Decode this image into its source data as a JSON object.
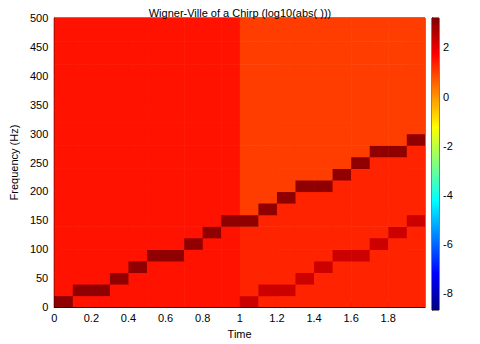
{
  "chart_data": {
    "type": "heatmap",
    "title": "Wigner-Ville of a Chirp (log10(abs( )))",
    "x_label": "Time",
    "y_label": "Frequency (Hz)",
    "xlim": [
      0,
      1.998
    ],
    "xticks": [
      0,
      0.2,
      0.4,
      0.6,
      0.8,
      1,
      1.2,
      1.4,
      1.6,
      1.8
    ],
    "ylim": [
      0,
      500
    ],
    "yticks": [
      0,
      50,
      100,
      150,
      200,
      250,
      300,
      350,
      400,
      450,
      500
    ],
    "grid": false,
    "x_bins": [
      0,
      0.1,
      0.2,
      0.3,
      0.4,
      0.5,
      0.6,
      0.7,
      0.8,
      0.9,
      1,
      1.1,
      1.2,
      1.3,
      1.4,
      1.5,
      1.6,
      1.7,
      1.8,
      1.9,
      2
    ],
    "y_bins": [
      0,
      20,
      40,
      60,
      80,
      100,
      120,
      140,
      160,
      180,
      200,
      220,
      240,
      260,
      280,
      300,
      320,
      340,
      360,
      380,
      400,
      420,
      440,
      460,
      480,
      500
    ],
    "cells": [
      [
        3.0,
        1.5,
        1.5,
        1.5,
        1.5,
        1.5,
        1.5,
        1.5,
        1.5,
        1.5,
        2.3,
        1.3,
        1.3,
        1.3,
        1.3,
        1.3,
        1.3,
        1.3,
        1.3,
        1.3
      ],
      [
        1.5,
        3.0,
        3.0,
        1.5,
        1.5,
        1.5,
        1.5,
        1.5,
        1.5,
        1.5,
        1.3,
        2.3,
        2.3,
        1.3,
        1.3,
        1.3,
        1.3,
        1.3,
        1.3,
        1.3
      ],
      [
        1.5,
        1.5,
        1.5,
        3.0,
        1.5,
        1.5,
        1.5,
        1.5,
        1.5,
        1.5,
        1.3,
        1.3,
        1.3,
        2.3,
        1.3,
        1.3,
        1.3,
        1.3,
        1.3,
        1.3
      ],
      [
        1.5,
        1.5,
        1.5,
        1.5,
        3.0,
        1.5,
        1.5,
        1.5,
        1.5,
        1.5,
        1.3,
        1.3,
        1.3,
        1.3,
        2.3,
        1.3,
        1.3,
        1.3,
        1.3,
        1.3
      ],
      [
        1.5,
        1.5,
        1.5,
        1.5,
        1.5,
        3.0,
        3.0,
        1.5,
        1.5,
        1.5,
        1.3,
        1.3,
        1.3,
        1.3,
        1.3,
        2.3,
        2.3,
        1.3,
        1.3,
        1.3
      ],
      [
        1.5,
        1.5,
        1.5,
        1.5,
        1.5,
        1.5,
        1.5,
        3.0,
        1.5,
        1.5,
        1.3,
        1.3,
        1.3,
        1.3,
        1.3,
        1.3,
        1.3,
        2.3,
        1.3,
        1.3
      ],
      [
        1.5,
        1.5,
        1.5,
        1.5,
        1.5,
        1.5,
        1.5,
        1.5,
        3.0,
        1.5,
        1.3,
        1.3,
        1.3,
        1.3,
        1.3,
        1.3,
        1.3,
        1.3,
        2.3,
        1.3
      ],
      [
        1.5,
        1.5,
        1.5,
        1.5,
        1.5,
        1.5,
        1.5,
        1.5,
        1.5,
        3.0,
        3.0,
        1.3,
        1.3,
        1.3,
        1.3,
        1.3,
        1.3,
        1.3,
        1.3,
        2.3
      ],
      [
        1.5,
        1.5,
        1.5,
        1.5,
        1.5,
        1.5,
        1.5,
        1.5,
        1.5,
        1.5,
        1.0,
        3.0,
        1.3,
        1.3,
        1.3,
        1.3,
        1.3,
        1.3,
        1.3,
        1.3
      ],
      [
        1.5,
        1.5,
        1.5,
        1.5,
        1.5,
        1.5,
        1.5,
        1.5,
        1.5,
        1.5,
        1.0,
        1.0,
        3.0,
        1.3,
        1.3,
        1.3,
        1.3,
        1.3,
        1.3,
        1.3
      ],
      [
        1.5,
        1.5,
        1.5,
        1.5,
        1.5,
        1.5,
        1.5,
        1.5,
        1.5,
        1.5,
        1.0,
        1.0,
        1.0,
        3.0,
        3.0,
        1.3,
        1.3,
        1.3,
        1.3,
        1.3
      ],
      [
        1.5,
        1.5,
        1.5,
        1.5,
        1.5,
        1.5,
        1.5,
        1.5,
        1.5,
        1.5,
        1.0,
        1.0,
        1.0,
        1.0,
        1.0,
        3.0,
        1.3,
        1.3,
        1.3,
        1.3
      ],
      [
        1.5,
        1.5,
        1.5,
        1.5,
        1.5,
        1.5,
        1.5,
        1.5,
        1.5,
        1.5,
        1.0,
        1.0,
        1.0,
        1.0,
        1.0,
        1.0,
        3.0,
        1.3,
        1.3,
        1.3
      ],
      [
        1.5,
        1.5,
        1.5,
        1.5,
        1.5,
        1.5,
        1.5,
        1.5,
        1.5,
        1.5,
        1.0,
        1.0,
        1.0,
        1.0,
        1.0,
        1.0,
        1.0,
        3.0,
        3.0,
        1.3
      ],
      [
        1.5,
        1.5,
        1.5,
        1.5,
        1.5,
        1.5,
        1.5,
        1.5,
        1.5,
        1.5,
        1.0,
        1.0,
        1.0,
        1.0,
        1.0,
        1.0,
        1.0,
        1.0,
        1.0,
        3.0
      ],
      [
        1.5,
        1.5,
        1.5,
        1.5,
        1.5,
        1.5,
        1.5,
        1.5,
        1.5,
        1.5,
        1.0,
        1.0,
        1.0,
        1.0,
        1.0,
        1.0,
        1.0,
        1.0,
        1.0,
        1.0
      ],
      [
        1.5,
        1.5,
        1.5,
        1.5,
        1.5,
        1.5,
        1.5,
        1.5,
        1.5,
        1.5,
        1.0,
        1.0,
        1.0,
        1.0,
        1.0,
        1.0,
        1.0,
        1.0,
        1.0,
        1.0
      ],
      [
        1.5,
        1.5,
        1.5,
        1.5,
        1.5,
        1.5,
        1.5,
        1.5,
        1.5,
        1.5,
        1.0,
        1.0,
        1.0,
        1.0,
        1.0,
        1.0,
        1.0,
        1.0,
        1.0,
        1.0
      ],
      [
        1.5,
        1.5,
        1.5,
        1.5,
        1.5,
        1.5,
        1.5,
        1.5,
        1.5,
        1.5,
        1.0,
        1.0,
        1.0,
        1.0,
        1.0,
        1.0,
        1.0,
        1.0,
        1.0,
        1.0
      ],
      [
        1.5,
        1.5,
        1.5,
        1.5,
        1.5,
        1.5,
        1.5,
        1.5,
        1.5,
        1.5,
        1.0,
        1.0,
        1.0,
        1.0,
        1.0,
        1.0,
        1.0,
        1.0,
        1.0,
        1.0
      ],
      [
        1.5,
        1.5,
        1.5,
        1.5,
        1.5,
        1.5,
        1.5,
        1.5,
        1.5,
        1.5,
        1.0,
        1.0,
        1.0,
        1.0,
        1.0,
        1.0,
        1.0,
        1.0,
        1.0,
        1.0
      ],
      [
        1.5,
        1.5,
        1.5,
        1.5,
        1.5,
        1.5,
        1.5,
        1.5,
        1.5,
        1.5,
        1.0,
        1.0,
        1.0,
        1.0,
        1.0,
        1.0,
        1.0,
        1.0,
        1.0,
        1.0
      ],
      [
        1.5,
        1.5,
        1.5,
        1.5,
        1.5,
        1.5,
        1.5,
        1.5,
        1.5,
        1.5,
        1.0,
        1.0,
        1.0,
        1.0,
        1.0,
        1.0,
        1.0,
        1.0,
        1.0,
        1.0
      ],
      [
        1.5,
        1.5,
        1.5,
        1.5,
        1.5,
        1.5,
        1.5,
        1.5,
        1.5,
        1.5,
        1.0,
        1.0,
        1.0,
        1.0,
        1.0,
        1.0,
        1.0,
        1.0,
        1.0,
        1.0
      ],
      [
        1.5,
        1.5,
        1.5,
        1.5,
        1.5,
        1.5,
        1.5,
        1.5,
        1.5,
        1.5,
        1.0,
        1.0,
        1.0,
        1.0,
        1.0,
        1.0,
        1.0,
        1.0,
        1.0,
        1.0
      ]
    ],
    "colorbar": {
      "range": [
        -8.7,
        3.2
      ],
      "ticks": [
        -8,
        -6,
        -4,
        -2,
        0,
        2
      ]
    }
  }
}
